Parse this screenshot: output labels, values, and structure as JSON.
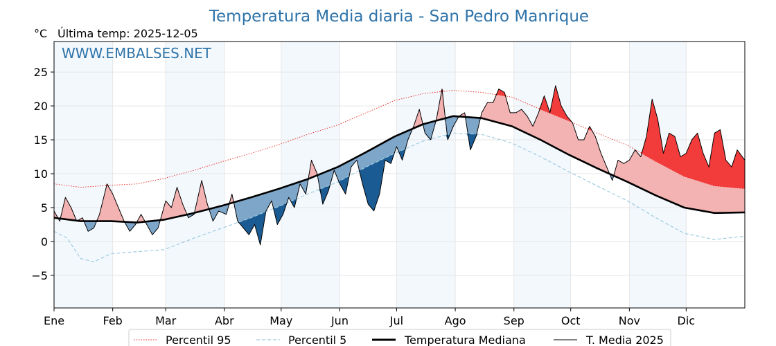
{
  "page": {
    "title": "Temperatura Media diaria - San Pedro Manrique",
    "unit_label": "°C",
    "last_temp_label": "Última temp: 2025-12-05",
    "watermark": "WWW.EMBALSES.NET"
  },
  "chart_data": {
    "type": "line",
    "title": "Temperatura Media diaria - San Pedro Manrique",
    "ylabel": "°C",
    "xlabel": "",
    "ylim": [
      -9.8,
      29.5
    ],
    "xlim": [
      1,
      366
    ],
    "grid": true,
    "legend_position": "bottom",
    "x_ticks": [
      {
        "day": 1,
        "label": "Ene"
      },
      {
        "day": 32,
        "label": "Feb"
      },
      {
        "day": 60,
        "label": "Mar"
      },
      {
        "day": 91,
        "label": "Abr"
      },
      {
        "day": 121,
        "label": "May"
      },
      {
        "day": 152,
        "label": "Jun"
      },
      {
        "day": 182,
        "label": "Jul"
      },
      {
        "day": 213,
        "label": "Ago"
      },
      {
        "day": 244,
        "label": "Sep"
      },
      {
        "day": 274,
        "label": "Oct"
      },
      {
        "day": 305,
        "label": "Nov"
      },
      {
        "day": 335,
        "label": "Dic"
      }
    ],
    "y_ticks": [
      {
        "value": -5,
        "label": "−5"
      },
      {
        "value": 0,
        "label": "0"
      },
      {
        "value": 5,
        "label": "5"
      },
      {
        "value": 10,
        "label": "10"
      },
      {
        "value": 15,
        "label": "15"
      },
      {
        "value": 20,
        "label": "20"
      },
      {
        "value": 25,
        "label": "25"
      }
    ],
    "shaded_months": [
      [
        1,
        32
      ],
      [
        60,
        91
      ],
      [
        121,
        152
      ],
      [
        182,
        213
      ],
      [
        244,
        274
      ],
      [
        305,
        335
      ]
    ],
    "fill_colors": {
      "above_median": "#f4b3b3",
      "above_p95": "#f23b3b",
      "below_median": "#7ea6c9",
      "below_p5": "#1b5b93"
    },
    "series": [
      {
        "name": "Percentil 95",
        "color": "#e8221b",
        "style": "dotted",
        "points": [
          [
            1,
            8.5
          ],
          [
            15,
            8.0
          ],
          [
            31,
            8.3
          ],
          [
            45,
            8.5
          ],
          [
            59,
            9.3
          ],
          [
            75,
            10.5
          ],
          [
            90,
            11.8
          ],
          [
            105,
            13.0
          ],
          [
            120,
            14.3
          ],
          [
            135,
            15.8
          ],
          [
            151,
            17.2
          ],
          [
            166,
            19.0
          ],
          [
            181,
            20.8
          ],
          [
            196,
            21.8
          ],
          [
            212,
            22.3
          ],
          [
            227,
            22.0
          ],
          [
            243,
            21.3
          ],
          [
            258,
            19.5
          ],
          [
            273,
            17.8
          ],
          [
            288,
            16.0
          ],
          [
            304,
            14.2
          ],
          [
            319,
            11.8
          ],
          [
            334,
            9.6
          ],
          [
            350,
            8.2
          ],
          [
            366,
            7.8
          ]
        ]
      },
      {
        "name": "Percentil 5",
        "color": "#9ccbe0",
        "style": "dashed",
        "points": [
          [
            1,
            1.5
          ],
          [
            8,
            0.5
          ],
          [
            15,
            -2.5
          ],
          [
            22,
            -3.0
          ],
          [
            31,
            -1.8
          ],
          [
            45,
            -1.5
          ],
          [
            59,
            -1.2
          ],
          [
            75,
            0.5
          ],
          [
            90,
            2.0
          ],
          [
            105,
            3.5
          ],
          [
            120,
            5.2
          ],
          [
            135,
            7.0
          ],
          [
            151,
            8.8
          ],
          [
            166,
            11.0
          ],
          [
            181,
            13.0
          ],
          [
            196,
            14.8
          ],
          [
            212,
            16.0
          ],
          [
            227,
            15.8
          ],
          [
            243,
            14.5
          ],
          [
            258,
            12.5
          ],
          [
            273,
            10.3
          ],
          [
            288,
            8.2
          ],
          [
            304,
            6.0
          ],
          [
            319,
            3.5
          ],
          [
            334,
            1.2
          ],
          [
            350,
            0.3
          ],
          [
            366,
            0.8
          ]
        ]
      },
      {
        "name": "Temperatura Mediana",
        "color": "#000000",
        "style": "thick",
        "points": [
          [
            1,
            3.5
          ],
          [
            15,
            3.0
          ],
          [
            31,
            3.0
          ],
          [
            45,
            2.8
          ],
          [
            59,
            3.2
          ],
          [
            75,
            4.2
          ],
          [
            90,
            5.3
          ],
          [
            105,
            6.5
          ],
          [
            120,
            7.8
          ],
          [
            135,
            9.2
          ],
          [
            151,
            11.0
          ],
          [
            166,
            13.2
          ],
          [
            181,
            15.5
          ],
          [
            196,
            17.3
          ],
          [
            212,
            18.5
          ],
          [
            227,
            18.2
          ],
          [
            243,
            17.0
          ],
          [
            258,
            15.0
          ],
          [
            273,
            12.8
          ],
          [
            288,
            10.8
          ],
          [
            304,
            8.8
          ],
          [
            319,
            6.8
          ],
          [
            334,
            5.0
          ],
          [
            350,
            4.2
          ],
          [
            366,
            4.3
          ]
        ]
      },
      {
        "name": "T. Media 2025",
        "color": "#000000",
        "style": "thin",
        "points": [
          [
            1,
            4.5
          ],
          [
            4,
            3.0
          ],
          [
            7,
            6.5
          ],
          [
            10,
            5.0
          ],
          [
            13,
            3.0
          ],
          [
            16,
            3.5
          ],
          [
            19,
            1.5
          ],
          [
            22,
            2.0
          ],
          [
            25,
            4.0
          ],
          [
            29,
            8.5
          ],
          [
            32,
            7.0
          ],
          [
            35,
            5.0
          ],
          [
            38,
            3.0
          ],
          [
            41,
            1.5
          ],
          [
            44,
            2.5
          ],
          [
            47,
            4.0
          ],
          [
            50,
            2.5
          ],
          [
            53,
            1.0
          ],
          [
            56,
            2.0
          ],
          [
            60,
            6.0
          ],
          [
            63,
            5.0
          ],
          [
            66,
            8.0
          ],
          [
            69,
            5.5
          ],
          [
            72,
            3.5
          ],
          [
            75,
            4.0
          ],
          [
            79,
            9.0
          ],
          [
            82,
            5.5
          ],
          [
            85,
            3.0
          ],
          [
            88,
            4.5
          ],
          [
            92,
            4.0
          ],
          [
            95,
            7.0
          ],
          [
            98,
            3.0
          ],
          [
            101,
            2.0
          ],
          [
            104,
            1.0
          ],
          [
            107,
            2.5
          ],
          [
            110,
            -0.5
          ],
          [
            113,
            4.5
          ],
          [
            116,
            6.0
          ],
          [
            119,
            2.5
          ],
          [
            122,
            4.0
          ],
          [
            125,
            6.5
          ],
          [
            128,
            5.0
          ],
          [
            131,
            8.5
          ],
          [
            134,
            7.0
          ],
          [
            137,
            12.0
          ],
          [
            140,
            10.0
          ],
          [
            143,
            5.5
          ],
          [
            146,
            7.5
          ],
          [
            149,
            10.5
          ],
          [
            152,
            8.5
          ],
          [
            155,
            7.0
          ],
          [
            158,
            11.0
          ],
          [
            161,
            12.0
          ],
          [
            164,
            8.5
          ],
          [
            167,
            5.5
          ],
          [
            170,
            4.5
          ],
          [
            173,
            7.0
          ],
          [
            176,
            12.0
          ],
          [
            179,
            11.5
          ],
          [
            182,
            14.0
          ],
          [
            185,
            12.0
          ],
          [
            188,
            15.0
          ],
          [
            191,
            17.0
          ],
          [
            194,
            19.5
          ],
          [
            197,
            16.0
          ],
          [
            200,
            15.0
          ],
          [
            203,
            18.0
          ],
          [
            206,
            22.5
          ],
          [
            209,
            15.0
          ],
          [
            212,
            17.0
          ],
          [
            215,
            18.5
          ],
          [
            218,
            19.0
          ],
          [
            221,
            13.5
          ],
          [
            224,
            15.5
          ],
          [
            227,
            19.0
          ],
          [
            230,
            20.5
          ],
          [
            233,
            20.5
          ],
          [
            236,
            22.5
          ],
          [
            239,
            22.0
          ],
          [
            242,
            19.0
          ],
          [
            245,
            19.0
          ],
          [
            248,
            19.5
          ],
          [
            251,
            18.5
          ],
          [
            254,
            17.0
          ],
          [
            257,
            19.0
          ],
          [
            260,
            21.5
          ],
          [
            263,
            19.0
          ],
          [
            266,
            23.0
          ],
          [
            269,
            20.0
          ],
          [
            272,
            18.5
          ],
          [
            275,
            17.5
          ],
          [
            278,
            15.0
          ],
          [
            281,
            15.0
          ],
          [
            284,
            17.0
          ],
          [
            287,
            15.5
          ],
          [
            290,
            13.0
          ],
          [
            293,
            11.0
          ],
          [
            296,
            9.0
          ],
          [
            299,
            12.0
          ],
          [
            302,
            11.5
          ],
          [
            305,
            12.0
          ],
          [
            308,
            13.5
          ],
          [
            311,
            12.5
          ],
          [
            314,
            15.5
          ],
          [
            317,
            21.0
          ],
          [
            320,
            18.0
          ],
          [
            323,
            13.0
          ],
          [
            326,
            16.0
          ],
          [
            329,
            15.5
          ],
          [
            332,
            12.5
          ],
          [
            335,
            13.0
          ],
          [
            338,
            15.0
          ],
          [
            341,
            16.0
          ],
          [
            344,
            13.0
          ],
          [
            347,
            11.0
          ],
          [
            350,
            16.0
          ],
          [
            353,
            16.5
          ],
          [
            356,
            12.0
          ],
          [
            359,
            11.0
          ],
          [
            362,
            13.5
          ],
          [
            366,
            12.0
          ]
        ]
      }
    ]
  },
  "legend": {
    "items": [
      {
        "label": "Percentil 95"
      },
      {
        "label": "Percentil 5"
      },
      {
        "label": "Temperatura Mediana"
      },
      {
        "label": "T. Media 2025"
      }
    ]
  }
}
